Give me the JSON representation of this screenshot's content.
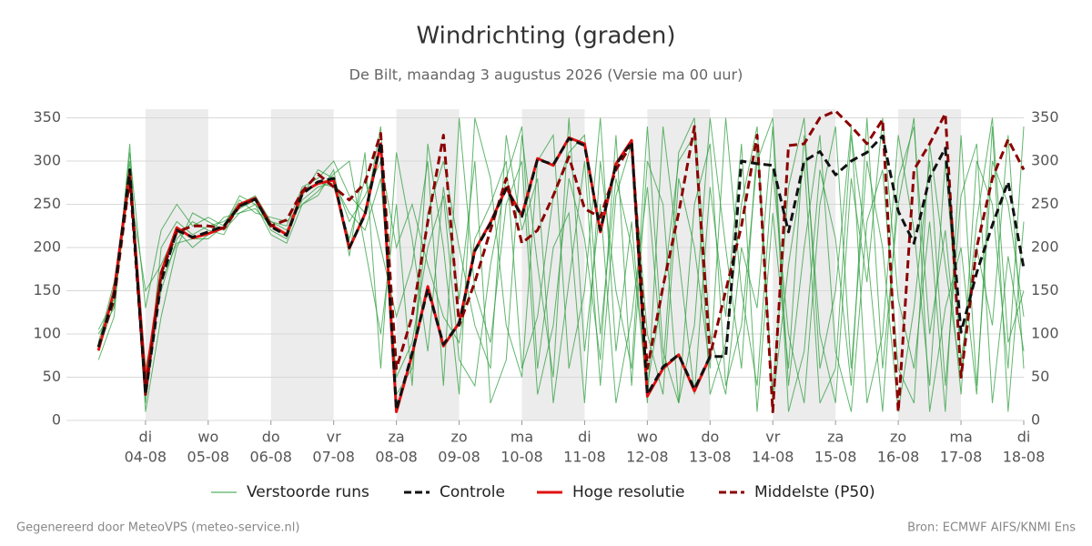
{
  "chart_data": {
    "type": "line",
    "title": "Windrichting (graden)",
    "subtitle": "De Bilt, maandag  3 augustus 2026 (Versie ma 00 uur)",
    "footer_left": "Gegenereerd door MeteoVPS (meteo-service.nl)",
    "footer_right": "Bron: ECMWF AIFS/KNMI Ens",
    "xlim": [
      -0.26,
      15
    ],
    "ylim": [
      0,
      360
    ],
    "yticks": [
      0,
      50,
      100,
      150,
      200,
      250,
      300,
      350
    ],
    "xticks": [
      {
        "value": 1,
        "label": "di",
        "sublabel": "04-08"
      },
      {
        "value": 2,
        "label": "wo",
        "sublabel": "05-08"
      },
      {
        "value": 3,
        "label": "do",
        "sublabel": "06-08"
      },
      {
        "value": 4,
        "label": "vr",
        "sublabel": "07-08"
      },
      {
        "value": 5,
        "label": "za",
        "sublabel": "08-08"
      },
      {
        "value": 6,
        "label": "zo",
        "sublabel": "09-08"
      },
      {
        "value": 7,
        "label": "ma",
        "sublabel": "10-08"
      },
      {
        "value": 8,
        "label": "di",
        "sublabel": "11-08"
      },
      {
        "value": 9,
        "label": "wo",
        "sublabel": "12-08"
      },
      {
        "value": 10,
        "label": "do",
        "sublabel": "13-08"
      },
      {
        "value": 11,
        "label": "vr",
        "sublabel": "14-08"
      },
      {
        "value": 12,
        "label": "za",
        "sublabel": "15-08"
      },
      {
        "value": 13,
        "label": "zo",
        "sublabel": "16-08"
      },
      {
        "value": 14,
        "label": "ma",
        "sublabel": "17-08"
      },
      {
        "value": 15,
        "label": "di",
        "sublabel": "18-08"
      }
    ],
    "grid": true,
    "shaded_bands": [
      [
        1,
        2
      ],
      [
        3,
        4
      ],
      [
        5,
        6
      ],
      [
        7,
        8
      ],
      [
        9,
        10
      ],
      [
        11,
        12
      ],
      [
        13,
        14
      ]
    ],
    "x": [
      0.25,
      0.5,
      0.75,
      1,
      1.25,
      1.5,
      1.75,
      2,
      2.25,
      2.5,
      2.75,
      3,
      3.25,
      3.5,
      3.75,
      4,
      4.25,
      4.5,
      4.75,
      5,
      5.25,
      5.5,
      5.75,
      6,
      6.25,
      6.5,
      6.75,
      7,
      7.25,
      7.5,
      7.75,
      8,
      8.25,
      8.5,
      8.75,
      9,
      9.25,
      9.5,
      9.75,
      10,
      10.25,
      10.5,
      10.75,
      11,
      11.25,
      11.5,
      11.75,
      12,
      12.25,
      12.5,
      12.75,
      13,
      13.25,
      13.5,
      13.75,
      14,
      14.25,
      14.5,
      14.75,
      15
    ],
    "ensemble": {
      "name": "Verstoorde runs",
      "color": "#2e9e3e",
      "members": [
        [
          85,
          150,
          300,
          20,
          200,
          230,
          215,
          225,
          230,
          245,
          255,
          220,
          210,
          260,
          290,
          280,
          230,
          260,
          300,
          200,
          250,
          180,
          120,
          90,
          210,
          250,
          300,
          60,
          120,
          260,
          310,
          330,
          100,
          280,
          200,
          40,
          150,
          300,
          330,
          30,
          90,
          250,
          340,
          20,
          180,
          300,
          20,
          60,
          330,
          200,
          10,
          280,
          340,
          100,
          220,
          30,
          300,
          250,
          60,
          340
        ],
        [
          100,
          130,
          290,
          60,
          150,
          210,
          230,
          220,
          215,
          250,
          260,
          230,
          220,
          255,
          270,
          275,
          240,
          220,
          280,
          50,
          90,
          200,
          260,
          70,
          40,
          180,
          280,
          340,
          60,
          200,
          240,
          20,
          300,
          150,
          60,
          340,
          80,
          20,
          250,
          320,
          40,
          110,
          300,
          350,
          40,
          200,
          330,
          80,
          10,
          230,
          290,
          60,
          20,
          320,
          180,
          50,
          230,
          350,
          90,
          150
        ],
        [
          70,
          120,
          320,
          10,
          120,
          200,
          240,
          230,
          220,
          240,
          250,
          230,
          225,
          270,
          280,
          300,
          260,
          240,
          340,
          30,
          60,
          240,
          300,
          200,
          110,
          60,
          330,
          220,
          280,
          20,
          160,
          300,
          40,
          260,
          320,
          100,
          30,
          280,
          200,
          60,
          350,
          150,
          40,
          290,
          100,
          20,
          250,
          340,
          60,
          300,
          200,
          10,
          130,
          300,
          40,
          260,
          320,
          20,
          190,
          80
        ],
        [
          90,
          160,
          270,
          150,
          180,
          220,
          200,
          215,
          235,
          240,
          245,
          225,
          215,
          265,
          275,
          270,
          210,
          280,
          200,
          120,
          180,
          300,
          40,
          350,
          150,
          90,
          250,
          300,
          30,
          110,
          280,
          210,
          70,
          330,
          40,
          300,
          250,
          20,
          110,
          350,
          200,
          60,
          320,
          30,
          270,
          350,
          60,
          150,
          340,
          20,
          100,
          330,
          220,
          40,
          300,
          70,
          200,
          110,
          330,
          60
        ],
        [
          105,
          140,
          310,
          130,
          220,
          250,
          225,
          235,
          225,
          255,
          240,
          235,
          230,
          250,
          265,
          285,
          300,
          200,
          100,
          250,
          40,
          320,
          200,
          30,
          350,
          280,
          110,
          50,
          300,
          330,
          60,
          150,
          350,
          80,
          230,
          20,
          340,
          190,
          30,
          270,
          120,
          320,
          10,
          240,
          60,
          330,
          100,
          20,
          280,
          160,
          350,
          140,
          60,
          230,
          10,
          330,
          40,
          300,
          250,
          120
        ],
        [
          80,
          135,
          280,
          40,
          160,
          205,
          210,
          210,
          225,
          260,
          250,
          215,
          205,
          250,
          260,
          290,
          190,
          310,
          60,
          310,
          210,
          80,
          270,
          140,
          300,
          20,
          70,
          330,
          180,
          50,
          350,
          80,
          250,
          20,
          120,
          270,
          60,
          310,
          350,
          100,
          30,
          200,
          130,
          340,
          10,
          80,
          290,
          210,
          40,
          350,
          60,
          250,
          350,
          10,
          130,
          200,
          30,
          340,
          10,
          230
        ]
      ]
    },
    "series": [
      {
        "name": "Controle",
        "color": "#111111",
        "dash": true,
        "values": [
          85,
          145,
          290,
          30,
          160,
          220,
          212,
          218,
          225,
          248,
          256,
          224,
          214,
          262,
          276,
          280,
          200,
          238,
          322,
          12,
          78,
          152,
          88,
          112,
          196,
          228,
          268,
          236,
          302,
          296,
          326,
          318,
          220,
          296,
          322,
          30,
          62,
          76,
          36,
          74,
          74,
          300,
          297,
          295,
          218,
          300,
          311,
          284,
          300,
          310,
          329,
          242,
          205,
          281,
          315,
          102,
          171,
          226,
          276,
          176
        ]
      },
      {
        "name": "Hoge resolutie",
        "color": "#e01010",
        "dash": false,
        "values": [
          81,
          150,
          287,
          44,
          171,
          223,
          211,
          216,
          223,
          250,
          257,
          226,
          215,
          264,
          274,
          278,
          199,
          239,
          320,
          10,
          76,
          155,
          86,
          113,
          197,
          229,
          269,
          237,
          303,
          295,
          327,
          320,
          218,
          297,
          324,
          28,
          60,
          76,
          34,
          74,
          null,
          null,
          null,
          null,
          null,
          null,
          null,
          null,
          null,
          null,
          null,
          null,
          null,
          null,
          null,
          null,
          null,
          null,
          null,
          null
        ]
      },
      {
        "name": "Middelste (P50)",
        "color": "#8b0000",
        "dash": true,
        "values": [
          85,
          140,
          280,
          30,
          170,
          218,
          225,
          225,
          222,
          248,
          256,
          225,
          232,
          265,
          285,
          270,
          255,
          275,
          332,
          60,
          120,
          230,
          330,
          110,
          160,
          220,
          280,
          205,
          220,
          260,
          305,
          245,
          235,
          290,
          320,
          60,
          155,
          240,
          340,
          75,
          150,
          225,
          330,
          10,
          318,
          320,
          350,
          358,
          340,
          320,
          348,
          10,
          290,
          320,
          355,
          50,
          200,
          280,
          325,
          290
        ]
      }
    ]
  }
}
